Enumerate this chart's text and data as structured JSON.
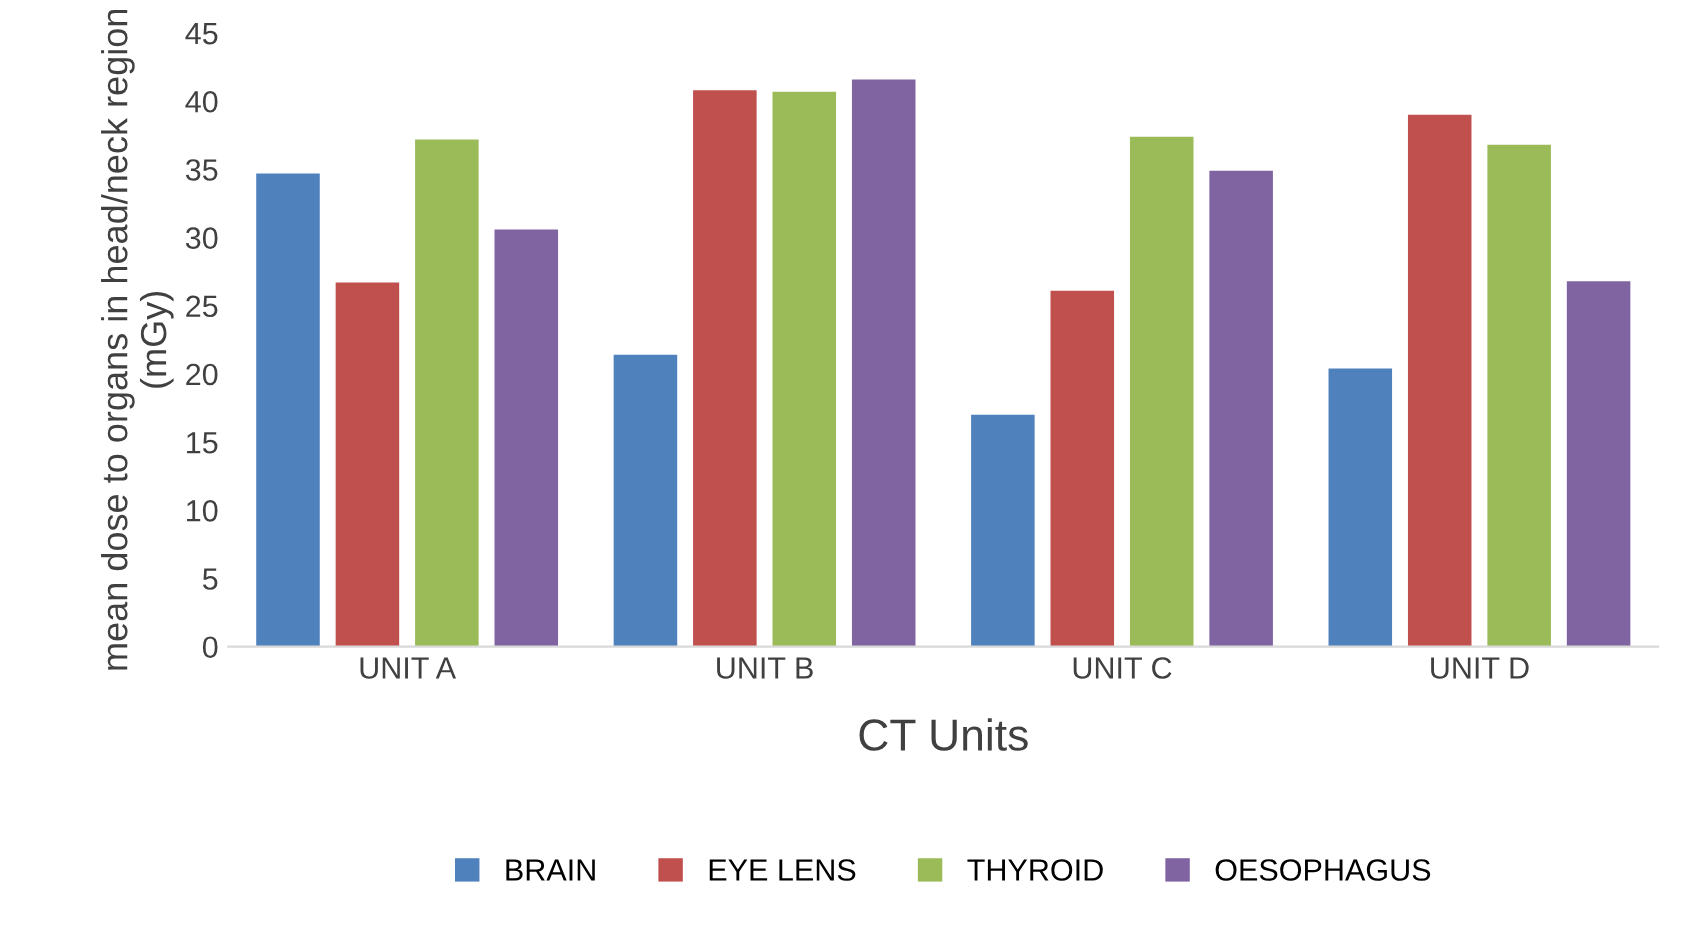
{
  "chart_data": {
    "type": "bar",
    "xlabel": "CT Units",
    "ylabel": "mean dose to organs in head/neck region (mGy)",
    "categories": [
      "UNIT A",
      "UNIT B",
      "UNIT C",
      "UNIT D"
    ],
    "series": [
      {
        "name": "BRAIN",
        "color": "#4f81bd",
        "values": [
          34.7,
          21.4,
          17.0,
          20.4
        ]
      },
      {
        "name": "EYE LENS",
        "color": "#c0504d",
        "values": [
          26.7,
          40.8,
          26.1,
          39.0
        ]
      },
      {
        "name": "THYROID",
        "color": "#9bbb59",
        "values": [
          37.2,
          40.7,
          37.4,
          36.8
        ]
      },
      {
        "name": "OESOPHAGUS",
        "color": "#8064a2",
        "values": [
          30.6,
          41.6,
          34.9,
          26.8
        ]
      }
    ],
    "ylim": [
      0,
      45
    ],
    "yticks": [
      0,
      5,
      10,
      15,
      20,
      25,
      30,
      35,
      40,
      45
    ],
    "grid": false,
    "legend": "bottom"
  }
}
